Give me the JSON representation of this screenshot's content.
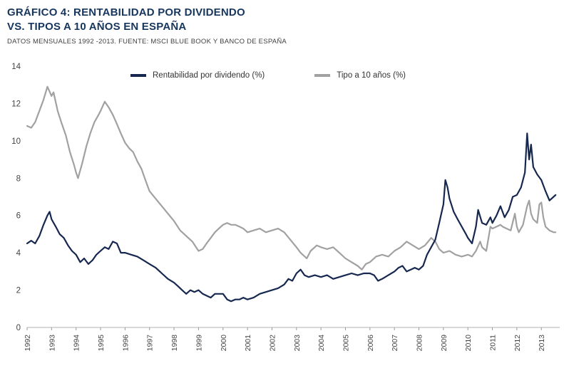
{
  "header": {
    "title_prefix": "GRÁFICO 4:",
    "title_line1_text": "RENTABILIDAD POR DIVIDENDO",
    "title_line2": "VS. TIPOS A 10 AÑOS EN ESPAÑA",
    "subtitle": "DATOS MENSUALES 1992 -2013. FUENTE: MSCI BLUE BOOK Y BANCO DE ESPAÑA"
  },
  "colors": {
    "title": "#17365d",
    "subtitle": "#3f3f3f",
    "axis_line": "#b0b0b0",
    "tick_text": "#444444",
    "dividend_line": "#16284f",
    "bond_line": "#a1a1a1"
  },
  "chart_data": {
    "type": "line",
    "title": "Rentabilidad por dividendo vs. tipos a 10 años en España",
    "xlabel": "",
    "ylabel": "%",
    "xlim": [
      1992,
      2013.75
    ],
    "ylim": [
      0,
      14
    ],
    "y_ticks": [
      0,
      2,
      4,
      6,
      8,
      10,
      12,
      14
    ],
    "x_ticks": [
      1992,
      1993,
      1994,
      1995,
      1996,
      1997,
      1998,
      1999,
      2000,
      2001,
      2002,
      2003,
      2004,
      2005,
      2006,
      2007,
      2008,
      2009,
      2010,
      2011,
      2012,
      2013
    ],
    "grid": false,
    "legend_position": "top-inside",
    "series": [
      {
        "name": "Rentabilidad por dividendo (%)",
        "color": "#16284f",
        "points": [
          [
            1992.0,
            4.5
          ],
          [
            1992.17,
            4.65
          ],
          [
            1992.33,
            4.5
          ],
          [
            1992.5,
            4.9
          ],
          [
            1992.67,
            5.5
          ],
          [
            1992.83,
            6.0
          ],
          [
            1992.92,
            6.2
          ],
          [
            1993.0,
            5.8
          ],
          [
            1993.17,
            5.4
          ],
          [
            1993.33,
            5.0
          ],
          [
            1993.5,
            4.8
          ],
          [
            1993.67,
            4.4
          ],
          [
            1993.83,
            4.1
          ],
          [
            1994.0,
            3.9
          ],
          [
            1994.17,
            3.5
          ],
          [
            1994.33,
            3.7
          ],
          [
            1994.5,
            3.4
          ],
          [
            1994.67,
            3.6
          ],
          [
            1994.83,
            3.9
          ],
          [
            1995.0,
            4.1
          ],
          [
            1995.17,
            4.3
          ],
          [
            1995.33,
            4.2
          ],
          [
            1995.5,
            4.6
          ],
          [
            1995.67,
            4.5
          ],
          [
            1995.83,
            4.0
          ],
          [
            1996.0,
            4.0
          ],
          [
            1996.25,
            3.9
          ],
          [
            1996.5,
            3.8
          ],
          [
            1996.75,
            3.6
          ],
          [
            1997.0,
            3.4
          ],
          [
            1997.25,
            3.2
          ],
          [
            1997.5,
            2.9
          ],
          [
            1997.75,
            2.6
          ],
          [
            1998.0,
            2.4
          ],
          [
            1998.17,
            2.2
          ],
          [
            1998.33,
            2.0
          ],
          [
            1998.5,
            1.8
          ],
          [
            1998.67,
            2.0
          ],
          [
            1998.83,
            1.9
          ],
          [
            1999.0,
            2.0
          ],
          [
            1999.17,
            1.8
          ],
          [
            1999.33,
            1.7
          ],
          [
            1999.5,
            1.6
          ],
          [
            1999.67,
            1.8
          ],
          [
            1999.83,
            1.8
          ],
          [
            2000.0,
            1.8
          ],
          [
            2000.17,
            1.5
          ],
          [
            2000.33,
            1.4
          ],
          [
            2000.5,
            1.5
          ],
          [
            2000.67,
            1.5
          ],
          [
            2000.83,
            1.6
          ],
          [
            2001.0,
            1.5
          ],
          [
            2001.25,
            1.6
          ],
          [
            2001.5,
            1.8
          ],
          [
            2001.75,
            1.9
          ],
          [
            2002.0,
            2.0
          ],
          [
            2002.25,
            2.1
          ],
          [
            2002.5,
            2.3
          ],
          [
            2002.67,
            2.6
          ],
          [
            2002.83,
            2.5
          ],
          [
            2003.0,
            2.9
          ],
          [
            2003.17,
            3.1
          ],
          [
            2003.33,
            2.8
          ],
          [
            2003.5,
            2.7
          ],
          [
            2003.75,
            2.8
          ],
          [
            2004.0,
            2.7
          ],
          [
            2004.25,
            2.8
          ],
          [
            2004.5,
            2.6
          ],
          [
            2004.75,
            2.7
          ],
          [
            2005.0,
            2.8
          ],
          [
            2005.25,
            2.9
          ],
          [
            2005.5,
            2.8
          ],
          [
            2005.75,
            2.9
          ],
          [
            2006.0,
            2.9
          ],
          [
            2006.17,
            2.8
          ],
          [
            2006.33,
            2.5
          ],
          [
            2006.5,
            2.6
          ],
          [
            2006.75,
            2.8
          ],
          [
            2007.0,
            3.0
          ],
          [
            2007.17,
            3.2
          ],
          [
            2007.33,
            3.3
          ],
          [
            2007.5,
            3.0
          ],
          [
            2007.67,
            3.1
          ],
          [
            2007.83,
            3.2
          ],
          [
            2008.0,
            3.1
          ],
          [
            2008.17,
            3.3
          ],
          [
            2008.33,
            3.9
          ],
          [
            2008.5,
            4.3
          ],
          [
            2008.67,
            4.7
          ],
          [
            2008.83,
            5.6
          ],
          [
            2009.0,
            6.6
          ],
          [
            2009.08,
            7.9
          ],
          [
            2009.17,
            7.5
          ],
          [
            2009.25,
            6.9
          ],
          [
            2009.42,
            6.2
          ],
          [
            2009.58,
            5.8
          ],
          [
            2009.75,
            5.4
          ],
          [
            2009.92,
            5.0
          ],
          [
            2010.0,
            4.8
          ],
          [
            2010.17,
            4.5
          ],
          [
            2010.33,
            5.4
          ],
          [
            2010.42,
            6.3
          ],
          [
            2010.58,
            5.6
          ],
          [
            2010.75,
            5.5
          ],
          [
            2010.92,
            5.9
          ],
          [
            2011.0,
            5.6
          ],
          [
            2011.17,
            6.0
          ],
          [
            2011.33,
            6.5
          ],
          [
            2011.5,
            5.9
          ],
          [
            2011.67,
            6.3
          ],
          [
            2011.83,
            7.0
          ],
          [
            2012.0,
            7.1
          ],
          [
            2012.17,
            7.5
          ],
          [
            2012.33,
            8.3
          ],
          [
            2012.42,
            10.4
          ],
          [
            2012.5,
            9.0
          ],
          [
            2012.58,
            9.8
          ],
          [
            2012.67,
            8.6
          ],
          [
            2012.83,
            8.2
          ],
          [
            2013.0,
            7.9
          ],
          [
            2013.17,
            7.3
          ],
          [
            2013.33,
            6.8
          ],
          [
            2013.5,
            7.0
          ],
          [
            2013.58,
            7.1
          ]
        ]
      },
      {
        "name": "Tipo a 10 años (%)",
        "color": "#a1a1a1",
        "points": [
          [
            1992.0,
            10.8
          ],
          [
            1992.17,
            10.7
          ],
          [
            1992.33,
            11.0
          ],
          [
            1992.5,
            11.6
          ],
          [
            1992.67,
            12.2
          ],
          [
            1992.83,
            12.9
          ],
          [
            1993.0,
            12.4
          ],
          [
            1993.08,
            12.6
          ],
          [
            1993.25,
            11.6
          ],
          [
            1993.42,
            10.9
          ],
          [
            1993.58,
            10.3
          ],
          [
            1993.75,
            9.4
          ],
          [
            1993.92,
            8.7
          ],
          [
            1994.0,
            8.3
          ],
          [
            1994.08,
            8.0
          ],
          [
            1994.25,
            8.8
          ],
          [
            1994.42,
            9.7
          ],
          [
            1994.58,
            10.4
          ],
          [
            1994.75,
            11.0
          ],
          [
            1994.92,
            11.4
          ],
          [
            1995.0,
            11.6
          ],
          [
            1995.17,
            12.1
          ],
          [
            1995.33,
            11.8
          ],
          [
            1995.5,
            11.4
          ],
          [
            1995.67,
            10.9
          ],
          [
            1995.83,
            10.4
          ],
          [
            1996.0,
            9.9
          ],
          [
            1996.17,
            9.6
          ],
          [
            1996.33,
            9.4
          ],
          [
            1996.5,
            8.9
          ],
          [
            1996.67,
            8.5
          ],
          [
            1996.83,
            7.9
          ],
          [
            1997.0,
            7.3
          ],
          [
            1997.25,
            6.9
          ],
          [
            1997.5,
            6.5
          ],
          [
            1997.75,
            6.1
          ],
          [
            1998.0,
            5.7
          ],
          [
            1998.25,
            5.2
          ],
          [
            1998.5,
            4.9
          ],
          [
            1998.75,
            4.6
          ],
          [
            1999.0,
            4.1
          ],
          [
            1999.17,
            4.2
          ],
          [
            1999.33,
            4.5
          ],
          [
            1999.5,
            4.8
          ],
          [
            1999.67,
            5.1
          ],
          [
            1999.83,
            5.3
          ],
          [
            2000.0,
            5.5
          ],
          [
            2000.17,
            5.6
          ],
          [
            2000.33,
            5.5
          ],
          [
            2000.5,
            5.5
          ],
          [
            2000.67,
            5.4
          ],
          [
            2000.83,
            5.3
          ],
          [
            2001.0,
            5.1
          ],
          [
            2001.25,
            5.2
          ],
          [
            2001.5,
            5.3
          ],
          [
            2001.75,
            5.1
          ],
          [
            2002.0,
            5.2
          ],
          [
            2002.25,
            5.3
          ],
          [
            2002.5,
            5.1
          ],
          [
            2002.75,
            4.7
          ],
          [
            2003.0,
            4.3
          ],
          [
            2003.17,
            4.0
          ],
          [
            2003.42,
            3.7
          ],
          [
            2003.58,
            4.1
          ],
          [
            2003.83,
            4.4
          ],
          [
            2004.0,
            4.3
          ],
          [
            2004.25,
            4.2
          ],
          [
            2004.5,
            4.3
          ],
          [
            2004.75,
            4.0
          ],
          [
            2005.0,
            3.7
          ],
          [
            2005.25,
            3.5
          ],
          [
            2005.5,
            3.3
          ],
          [
            2005.67,
            3.1
          ],
          [
            2005.83,
            3.4
          ],
          [
            2006.0,
            3.5
          ],
          [
            2006.25,
            3.8
          ],
          [
            2006.5,
            3.9
          ],
          [
            2006.75,
            3.8
          ],
          [
            2007.0,
            4.1
          ],
          [
            2007.25,
            4.3
          ],
          [
            2007.5,
            4.6
          ],
          [
            2007.75,
            4.4
          ],
          [
            2008.0,
            4.2
          ],
          [
            2008.25,
            4.4
          ],
          [
            2008.5,
            4.8
          ],
          [
            2008.67,
            4.6
          ],
          [
            2008.83,
            4.2
          ],
          [
            2009.0,
            4.0
          ],
          [
            2009.25,
            4.1
          ],
          [
            2009.5,
            3.9
          ],
          [
            2009.75,
            3.8
          ],
          [
            2010.0,
            3.9
          ],
          [
            2010.17,
            3.8
          ],
          [
            2010.33,
            4.1
          ],
          [
            2010.5,
            4.6
          ],
          [
            2010.58,
            4.3
          ],
          [
            2010.75,
            4.1
          ],
          [
            2010.92,
            5.4
          ],
          [
            2011.0,
            5.3
          ],
          [
            2011.17,
            5.4
          ],
          [
            2011.33,
            5.5
          ],
          [
            2011.42,
            5.4
          ],
          [
            2011.58,
            5.3
          ],
          [
            2011.75,
            5.2
          ],
          [
            2011.92,
            6.1
          ],
          [
            2012.0,
            5.4
          ],
          [
            2012.08,
            5.1
          ],
          [
            2012.25,
            5.5
          ],
          [
            2012.42,
            6.5
          ],
          [
            2012.5,
            6.8
          ],
          [
            2012.58,
            6.1
          ],
          [
            2012.67,
            5.8
          ],
          [
            2012.83,
            5.6
          ],
          [
            2012.92,
            6.6
          ],
          [
            2013.0,
            6.7
          ],
          [
            2013.08,
            5.9
          ],
          [
            2013.17,
            5.4
          ],
          [
            2013.33,
            5.2
          ],
          [
            2013.5,
            5.1
          ],
          [
            2013.58,
            5.1
          ]
        ]
      }
    ]
  }
}
